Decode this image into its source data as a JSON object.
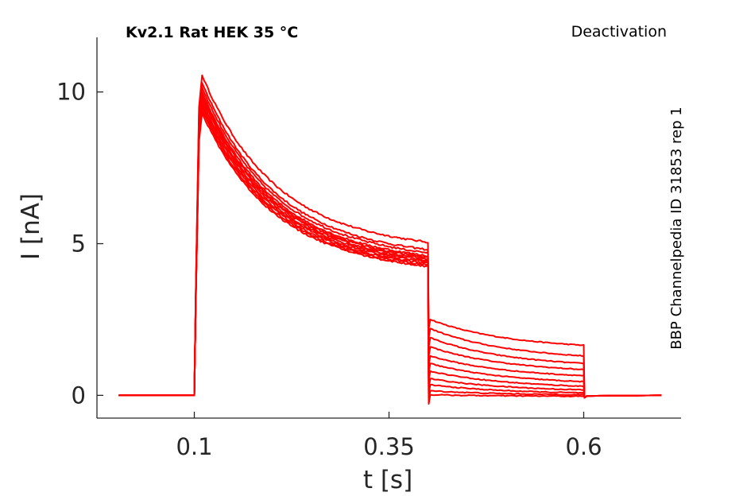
{
  "chart_data": {
    "type": "line",
    "title": "Kv2.1  Rat  HEK  35 °C",
    "subtitle": "Deactivation",
    "side_label": "BBP Channelpedia ID 31853 rep 1",
    "xlabel": "t [s]",
    "ylabel": "I [nA]",
    "xlim": [
      -0.025,
      0.725
    ],
    "ylim": [
      -0.75,
      11.8
    ],
    "xticks": [
      0.1,
      0.35,
      0.6
    ],
    "xtick_labels": [
      "0.1",
      "0.35",
      "0.6"
    ],
    "yticks": [
      0,
      5,
      10
    ],
    "ytick_labels": [
      "0",
      "5",
      "10"
    ],
    "grid": false,
    "line_color": "#ff0000",
    "protocol": {
      "baseline_start": 0.003,
      "step_on": 0.1,
      "step_off": 0.4,
      "tail_off": 0.6,
      "end": 0.7,
      "activation_tau_s": 0.003,
      "inactivation_tau_s": 0.3
    },
    "series": [
      {
        "peak": 10.55,
        "end_step": 5.05,
        "tail_start": 2.5,
        "tail_end": 1.65
      },
      {
        "peak": 10.3,
        "end_step": 4.8,
        "tail_start": 2.2,
        "tail_end": 1.3
      },
      {
        "peak": 10.15,
        "end_step": 4.7,
        "tail_start": 1.9,
        "tail_end": 1.05
      },
      {
        "peak": 10.0,
        "end_step": 4.6,
        "tail_start": 1.6,
        "tail_end": 0.85
      },
      {
        "peak": 9.9,
        "end_step": 4.55,
        "tail_start": 1.3,
        "tail_end": 0.65
      },
      {
        "peak": 9.8,
        "end_step": 4.5,
        "tail_start": 1.05,
        "tail_end": 0.45
      },
      {
        "peak": 9.7,
        "end_step": 4.45,
        "tail_start": 0.8,
        "tail_end": 0.3
      },
      {
        "peak": 9.6,
        "end_step": 4.4,
        "tail_start": 0.55,
        "tail_end": 0.18
      },
      {
        "peak": 9.5,
        "end_step": 4.35,
        "tail_start": 0.35,
        "tail_end": 0.08
      },
      {
        "peak": 9.4,
        "end_step": 4.3,
        "tail_start": 0.15,
        "tail_end": 0.02
      },
      {
        "peak": 9.3,
        "end_step": 4.25,
        "tail_start": 0.02,
        "tail_end": -0.03
      }
    ]
  }
}
